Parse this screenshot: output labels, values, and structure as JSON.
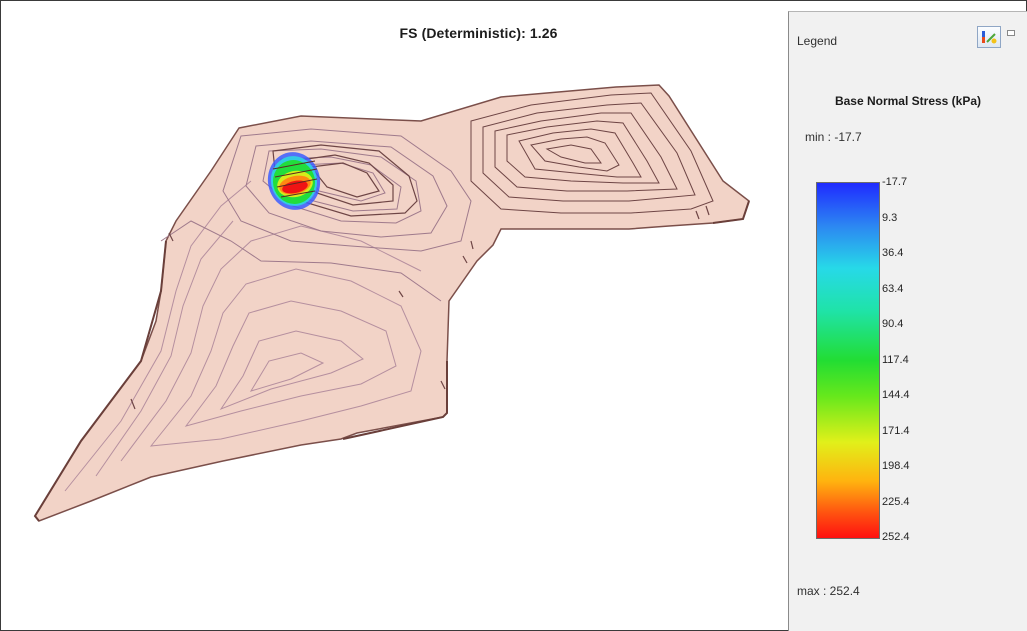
{
  "viewport": {
    "fs_label": "FS (Deterministic): 1.26",
    "model_fill": "#f1d2c6",
    "model_outline": "#7b4f4a"
  },
  "legend": {
    "header": "Legend",
    "title": "Base Normal Stress (kPa)",
    "min_label": "min :  -17.7",
    "max_label": "max : 252.4",
    "ticks": [
      "-17.7",
      "9.3",
      "36.4",
      "63.4",
      "90.4",
      "117.4",
      "144.4",
      "171.4",
      "198.4",
      "225.4",
      "252.4"
    ],
    "colors": {
      "low": "#1f2bff",
      "mid": "#22dd33",
      "high": "#ff1010"
    },
    "settings_icon": "legend-settings-icon"
  }
}
